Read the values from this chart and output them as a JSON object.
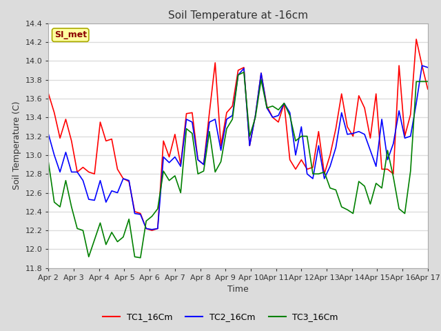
{
  "title": "Soil Temperature at -16cm",
  "xlabel": "Time",
  "ylabel": "Soil Temperature (C)",
  "ylim": [
    11.8,
    14.4
  ],
  "yticks": [
    11.8,
    12.0,
    12.2,
    12.4,
    12.6,
    12.8,
    13.0,
    13.2,
    13.4,
    13.6,
    13.8,
    14.0,
    14.2,
    14.4
  ],
  "xtick_labels": [
    "Apr 2",
    "Apr 3",
    "Apr 4",
    "Apr 5",
    "Apr 6",
    "Apr 7",
    "Apr 8",
    "Apr 9",
    "Apr 10",
    "Apr 11",
    "Apr 12",
    "Apr 13",
    "Apr 14",
    "Apr 15",
    "Apr 16",
    "Apr 17"
  ],
  "legend_label": "SI_met",
  "legend_text_color": "#8B0000",
  "legend_box_facecolor": "#FFFFA0",
  "legend_box_edgecolor": "#AAAA00",
  "series": [
    {
      "name": "TC1_16Cm",
      "color": "#FF0000",
      "values": [
        13.65,
        13.45,
        13.18,
        13.38,
        13.15,
        12.82,
        12.87,
        12.82,
        12.8,
        13.35,
        13.15,
        13.17,
        12.85,
        12.75,
        12.72,
        12.4,
        12.38,
        12.22,
        12.2,
        12.22,
        13.15,
        12.98,
        13.22,
        12.9,
        13.44,
        13.45,
        12.95,
        12.9,
        13.45,
        13.98,
        13.1,
        13.45,
        13.52,
        13.9,
        13.93,
        13.1,
        13.42,
        13.87,
        13.52,
        13.4,
        13.35,
        13.55,
        12.95,
        12.85,
        12.95,
        12.85,
        12.87,
        13.25,
        12.8,
        13.0,
        13.28,
        13.65,
        13.3,
        13.2,
        13.63,
        13.5,
        13.18,
        13.65,
        12.85,
        12.85,
        12.8,
        13.95,
        13.2,
        13.43,
        14.23,
        13.95,
        13.7
      ]
    },
    {
      "name": "TC2_16Cm",
      "color": "#0000FF",
      "values": [
        13.22,
        13.0,
        12.82,
        13.03,
        12.82,
        12.82,
        12.73,
        12.53,
        12.52,
        12.73,
        12.5,
        12.62,
        12.6,
        12.75,
        12.73,
        12.38,
        12.37,
        12.22,
        12.21,
        12.22,
        12.98,
        12.92,
        12.98,
        12.88,
        13.38,
        13.35,
        12.95,
        12.9,
        13.35,
        13.38,
        13.05,
        13.38,
        13.42,
        13.85,
        13.92,
        13.1,
        13.42,
        13.87,
        13.5,
        13.4,
        13.42,
        13.55,
        13.45,
        13.0,
        13.3,
        12.8,
        12.75,
        13.1,
        12.75,
        12.88,
        13.08,
        13.45,
        13.22,
        13.23,
        13.25,
        13.22,
        13.05,
        12.88,
        13.38,
        12.95,
        13.12,
        13.47,
        13.18,
        13.2,
        13.55,
        13.95,
        13.93
      ]
    },
    {
      "name": "TC3_16Cm",
      "color": "#008000",
      "values": [
        12.92,
        12.5,
        12.45,
        12.73,
        12.45,
        12.22,
        12.2,
        11.92,
        12.1,
        12.28,
        12.05,
        12.18,
        12.08,
        12.13,
        12.32,
        11.92,
        11.91,
        12.3,
        12.35,
        12.43,
        12.83,
        12.73,
        12.78,
        12.6,
        13.28,
        13.23,
        12.8,
        12.83,
        13.25,
        12.82,
        12.93,
        13.28,
        13.38,
        13.85,
        13.88,
        13.2,
        13.4,
        13.8,
        13.5,
        13.52,
        13.48,
        13.55,
        13.42,
        13.15,
        13.2,
        13.2,
        12.8,
        12.8,
        12.82,
        12.65,
        12.63,
        12.45,
        12.42,
        12.38,
        12.72,
        12.67,
        12.48,
        12.7,
        12.65,
        13.05,
        12.77,
        12.43,
        12.38,
        12.83,
        13.78,
        13.78,
        13.78
      ]
    }
  ],
  "fig_facecolor": "#DCDCDC",
  "plot_facecolor": "#FFFFFF",
  "grid_color": "#DCDCDC",
  "title_fontsize": 11,
  "axis_label_fontsize": 9,
  "tick_fontsize": 8,
  "line_width": 1.2
}
